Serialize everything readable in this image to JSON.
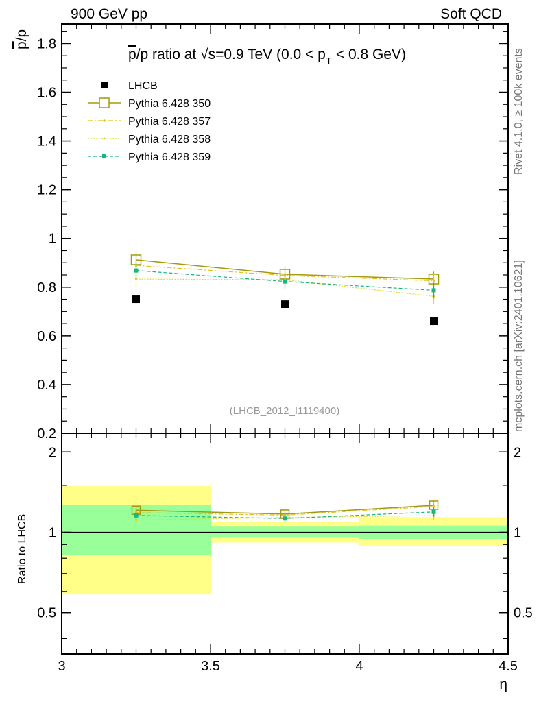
{
  "header": {
    "left": "900 GeV pp",
    "right": "Soft QCD"
  },
  "side_labels": {
    "rivet": "Rivet 4.1.0, ≥ 100k events",
    "mcplots": "mcplots.cern.ch [arXiv:2401.10621]"
  },
  "watermark": "(LHCB_2012_I1119400)",
  "colors": {
    "data": "#000000",
    "p350": "#a39a0c",
    "p357": "#e8c213",
    "p358": "#d9d929",
    "p359": "#17b87e",
    "band_yellow": "#ffff88",
    "band_green": "#99ff99"
  },
  "chart_data": [
    {
      "type": "scatter",
      "title_parts": {
        "pbar": "p",
        "mid": "/p ratio at ",
        "sqrt": "√s",
        "rest1": "=0.9 TeV (0.0 < p",
        "sub": "T",
        "rest2": " < 0.8 GeV)"
      },
      "ylabel": {
        "pbar": "p",
        "rest": "/p"
      },
      "xlim": [
        3.0,
        4.5
      ],
      "ylim": [
        0.2,
        1.88
      ],
      "yticks": [
        0.2,
        0.4,
        0.6,
        0.8,
        1.0,
        1.2,
        1.4,
        1.6,
        1.8
      ],
      "ytick_labels": [
        "0.2",
        "0.4",
        "0.6",
        "0.8",
        "1",
        "1.2",
        "1.4",
        "1.6",
        "1.8"
      ],
      "x": [
        3.25,
        3.75,
        4.25
      ],
      "series": [
        {
          "name": "LHCB",
          "values": [
            0.75,
            0.73,
            0.66
          ],
          "errors": [
            0.0,
            0.0,
            0.0
          ]
        },
        {
          "name": "Pythia 6.428 350",
          "values": [
            0.912,
            0.853,
            0.833
          ],
          "errors": [
            0.035,
            0.032,
            0.03
          ]
        },
        {
          "name": "Pythia 6.428 357",
          "values": [
            0.889,
            0.848,
            0.826
          ],
          "errors": [
            0.035,
            0.032,
            0.03
          ]
        },
        {
          "name": "Pythia 6.428 358",
          "values": [
            0.833,
            0.83,
            0.762
          ],
          "errors": [
            0.035,
            0.032,
            0.03
          ]
        },
        {
          "name": "Pythia 6.428 359",
          "values": [
            0.868,
            0.823,
            0.787
          ],
          "errors": [
            0.035,
            0.032,
            0.03
          ]
        }
      ]
    },
    {
      "type": "line",
      "ylabel": "Ratio to LHCB",
      "xlabel": "η",
      "xlim": [
        3.0,
        4.5
      ],
      "ylim": [
        0.35,
        2.35
      ],
      "yscale": "log",
      "yticks": [
        0.5,
        1.0,
        2.0
      ],
      "ytick_labels": [
        "0.5",
        "1",
        "2"
      ],
      "xticks": [
        3.0,
        3.5,
        4.0,
        4.5
      ],
      "xtick_labels": [
        "3",
        "3.5",
        "4",
        "4.5"
      ],
      "x": [
        3.25,
        3.75,
        4.25
      ],
      "bands": [
        {
          "x0": 3.0,
          "x1": 3.5,
          "yellow": [
            0.585,
            1.49
          ],
          "green": [
            0.825,
            1.265
          ]
        },
        {
          "x0": 3.5,
          "x1": 4.0,
          "yellow": [
            0.915,
            1.09
          ],
          "green": [
            0.955,
            1.05
          ]
        },
        {
          "x0": 4.0,
          "x1": 4.5,
          "yellow": [
            0.89,
            1.14
          ],
          "green": [
            0.945,
            1.06
          ]
        }
      ],
      "series": [
        {
          "name": "Pythia 6.428 350",
          "values": [
            1.21,
            1.17,
            1.263
          ]
        },
        {
          "name": "Pythia 6.428 357",
          "values": [
            1.185,
            1.16,
            1.251
          ]
        },
        {
          "name": "Pythia 6.428 358",
          "values": [
            1.111,
            1.137,
            1.155
          ]
        },
        {
          "name": "Pythia 6.428 359",
          "values": [
            1.157,
            1.127,
            1.192
          ]
        }
      ]
    }
  ]
}
